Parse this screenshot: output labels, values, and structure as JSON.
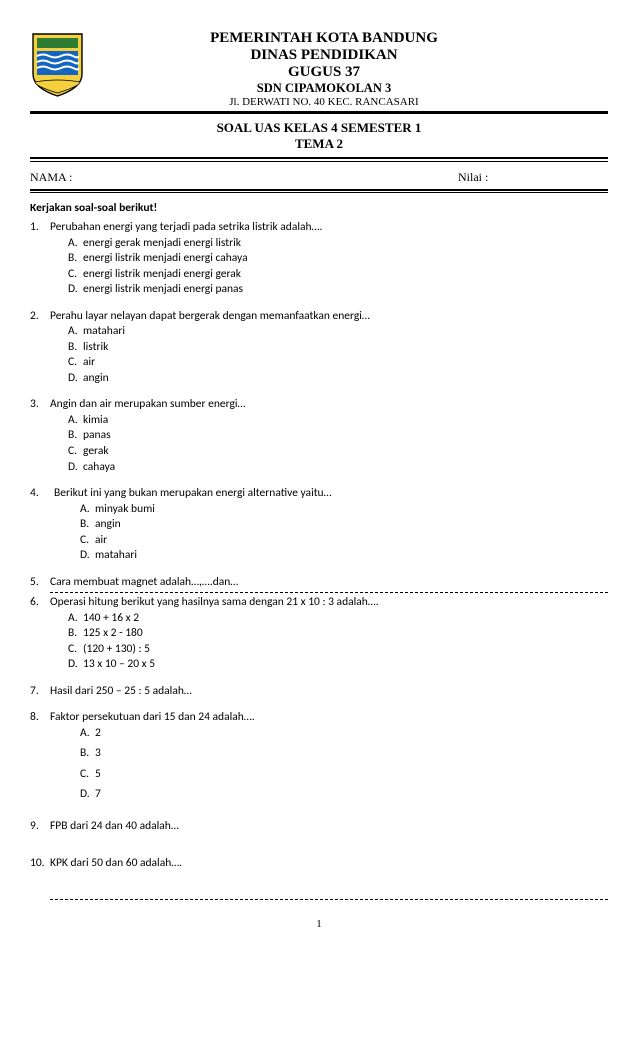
{
  "header": {
    "line1": "PEMERINTAH KOTA BANDUNG",
    "line2": "DINAS PENDIDIKAN",
    "line3": "GUGUS 37",
    "line4": "SDN CIPAMOKOLAN 3",
    "line5": "Jl. DERWATI  NO. 40 KEC. RANCASARI"
  },
  "exam": {
    "title1": "SOAL UAS  KELAS  4  SEMESTER 1",
    "title2": "TEMA 2"
  },
  "labels": {
    "nama": "NAMA :",
    "nilai": "Nilai :",
    "instr": "Kerjakan soal-soal berikut!"
  },
  "logo": {
    "shield_fill": "#f4d03f",
    "shield_stroke": "#000000",
    "stripe_top": "#2e7d32",
    "stripe_bg": "#1565c0",
    "wave": "#ffffff",
    "band": "#f4d03f"
  },
  "questions": [
    {
      "num": "1.",
      "stem": "Perubahan energi yang terjadi pada setrika listrik adalah….",
      "options": [
        "energi gerak menjadi energi listrik",
        "energi listrik menjadi energi cahaya",
        "energi listrik menjadi energi gerak",
        "energi listrik menjadi energi panas"
      ]
    },
    {
      "num": "2.",
      "stem": "Perahu layar nelayan dapat bergerak dengan memanfaatkan energi…",
      "options": [
        "matahari",
        "listrik",
        "air",
        "angin"
      ]
    },
    {
      "num": "3.",
      "stem": "Angin dan air merupakan sumber energi…",
      "options": [
        "kimia",
        "panas",
        "gerak",
        "cahaya"
      ]
    },
    {
      "num": "4.",
      "stem": "Berikut ini yang bukan merupakan energi alternative yaitu…",
      "options": [
        "minyak bumi",
        "angin",
        "air",
        "matahari"
      ],
      "indent": true
    },
    {
      "num": "5.",
      "stem": "Cara membuat magnet adalah…,….dan…",
      "noopts": true,
      "dash_after": true,
      "tight": true
    },
    {
      "num": "6.",
      "stem": "Operasi hitung berikut yang hasilnya sama dengan 21 x 10 : 3 adalah….",
      "options": [
        "140 + 16 x 2",
        "125 x 2 - 180",
        "(120 + 130) : 5",
        "13 x 10 – 20 x 5"
      ]
    },
    {
      "num": "7.",
      "stem": "Hasil dari 250 – 25 : 5 adalah…",
      "noopts": true
    },
    {
      "num": "8.",
      "stem": "Faktor persekutuan dari 15 dan 24 adalah….",
      "options": [
        "2",
        "3",
        "5",
        "7"
      ],
      "indent": true,
      "spaced": true
    },
    {
      "num": "9.",
      "stem": "FPB dari 24 dan 40 adalah…",
      "noopts": true,
      "extra_space": true
    },
    {
      "num": "10.",
      "stem": "KPK dari 50 dan 60  adalah….",
      "noopts": true,
      "dash_after": true,
      "dash_gap": true
    }
  ],
  "letters": [
    "A.",
    "B.",
    "C.",
    "D."
  ],
  "page_num": "1"
}
